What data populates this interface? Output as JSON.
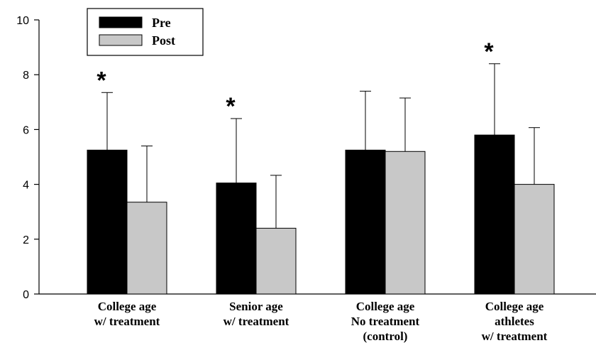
{
  "chart_data": {
    "type": "bar",
    "title": "",
    "xlabel": "",
    "ylabel": "",
    "ylim": [
      0,
      10
    ],
    "yticks": [
      0,
      2,
      4,
      6,
      8,
      10
    ],
    "categories": [
      [
        "College age",
        "w/ treatment"
      ],
      [
        "Senior age",
        "w/ treatment"
      ],
      [
        "College age",
        "No treatment",
        "(control)"
      ],
      [
        "College age",
        "athletes",
        "w/ treatment"
      ]
    ],
    "series": [
      {
        "name": "Pre",
        "color": "#000000",
        "values": [
          5.25,
          4.05,
          5.25,
          5.8
        ],
        "error_upper": [
          7.35,
          6.4,
          7.4,
          8.4
        ]
      },
      {
        "name": "Post",
        "color": "#c8c8c8",
        "values": [
          3.35,
          2.4,
          5.2,
          4.0
        ],
        "error_upper": [
          5.4,
          4.33,
          7.15,
          6.07
        ]
      }
    ],
    "annotations": [
      "*",
      "*",
      "",
      "*"
    ],
    "legend_position": "top-left",
    "grid": false
  }
}
